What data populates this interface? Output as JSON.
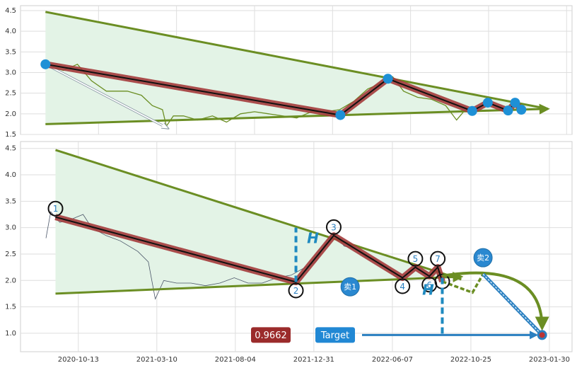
{
  "chart_data": [
    {
      "type": "line",
      "xlim": [
        0,
        7.07
      ],
      "xticks": [
        1,
        2,
        3,
        4,
        5,
        6,
        7
      ],
      "xtick_labels": false,
      "ylim": [
        1.5,
        4.62
      ],
      "yticks": [
        1.5,
        {
          "value": 2,
          "label": "2.0"
        },
        2.5,
        {
          "value": 3,
          "label": "3.0"
        },
        3.5,
        {
          "value": 4,
          "label": "4.0"
        },
        4.5
      ],
      "grid": true,
      "series": [
        {
          "color": "#6b8e23",
          "x": [
            0.32,
            0.37,
            0.55,
            0.73,
            0.91,
            1.1,
            1.37,
            1.55,
            1.69,
            1.82,
            1.87,
            1.96,
            2.09,
            2.27,
            2.46,
            2.64,
            2.82,
            3.0,
            3.18,
            3.36,
            3.54,
            3.73,
            3.91,
            4.09,
            4.27,
            4.45,
            4.63,
            4.77,
            4.91,
            5.09,
            5.27,
            5.45,
            5.59,
            5.68,
            5.77
          ],
          "values": [
            3.1,
            3.15,
            3.05,
            3.2,
            2.8,
            2.55,
            2.55,
            2.45,
            2.2,
            2.1,
            1.7,
            1.95,
            1.95,
            1.85,
            1.95,
            1.8,
            2.0,
            2.05,
            2.0,
            1.95,
            1.9,
            2.05,
            2.05,
            2.1,
            2.3,
            2.6,
            2.75,
            2.9,
            2.55,
            2.4,
            2.35,
            2.2,
            1.85,
            2.05,
            2.1
          ]
        }
      ],
      "triangle": {
        "color": "#6b8e23",
        "fill": "#e3f3e6",
        "upper": {
          "x": [
            0.32,
            6.76
          ],
          "values": [
            4.47,
            2.12
          ]
        },
        "lower": {
          "x": [
            0.32,
            6.76
          ],
          "values": [
            1.75,
            2.12
          ]
        }
      },
      "pattern": {
        "color": "#a33b3b",
        "point_color": "#1e90d6",
        "x": [
          0.32,
          4.1,
          4.71,
          5.79,
          5.99,
          6.25,
          6.34,
          6.42
        ],
        "values": [
          3.2,
          1.97,
          2.85,
          2.07,
          2.27,
          2.08,
          2.27,
          2.1
        ]
      },
      "arrow": {
        "x": [
          0.32,
          1.89
        ],
        "values": [
          3.2,
          1.65
        ]
      }
    },
    {
      "type": "line",
      "xlim": [
        "2020-06-26",
        "2023-02-27"
      ],
      "xticks": [
        "2020-10-13",
        "2021-03-10",
        "2021-08-04",
        "2021-12-31",
        "2022-06-07",
        "2022-10-25",
        "2023-01-30"
      ],
      "xtick_labels": true,
      "ylim": [
        0.65,
        4.63
      ],
      "yticks": [
        {
          "value": 1,
          "label": "1.0"
        },
        1.5,
        {
          "value": 2,
          "label": "2.0"
        },
        2.5,
        {
          "value": 3,
          "label": "3.0"
        },
        3.5,
        {
          "value": 4,
          "label": "4.0"
        },
        4.5
      ],
      "grid": true,
      "series": [
        {
          "color": "#4a5568",
          "x": [
            "2020-08-13",
            "2020-08-22",
            "2020-09-08",
            "2020-09-28",
            "2020-10-22",
            "2020-11-07",
            "2020-12-04",
            "2020-12-31",
            "2021-02-02",
            "2021-02-22",
            "2021-03-07",
            "2021-03-23",
            "2021-04-16",
            "2021-05-13",
            "2021-06-09",
            "2021-07-06",
            "2021-08-02",
            "2021-08-28",
            "2021-09-24",
            "2021-10-22",
            "2021-11-18",
            "2021-12-15",
            "2022-01-04",
            "2022-01-26",
            "2022-02-09",
            "2022-03-02",
            "2022-03-24",
            "2022-04-14",
            "2022-05-05",
            "2022-05-26",
            "2022-06-10",
            "2022-06-22"
          ],
          "values": [
            2.8,
            3.3,
            3.1,
            3.15,
            3.25,
            3.0,
            2.85,
            2.75,
            2.55,
            2.35,
            1.65,
            2.0,
            1.95,
            1.95,
            1.9,
            1.95,
            2.05,
            1.95,
            1.95,
            2.05,
            2.1,
            2.25,
            2.35,
            2.75,
            2.9,
            2.65,
            2.6,
            2.45,
            2.4,
            2.25,
            2.1,
            2.0
          ]
        }
      ],
      "triangle": {
        "color": "#6b8e23",
        "fill": "#e3f3e6",
        "upper": {
          "x": [
            "2020-08-31",
            "2022-10-08"
          ],
          "values": [
            4.47,
            2.02
          ]
        },
        "lower": {
          "x": [
            "2020-08-31",
            "2022-10-08"
          ],
          "values": [
            1.75,
            2.07
          ]
        }
      },
      "pattern": {
        "color": "#a33b3b",
        "label_color": "#2a7fc0",
        "x": [
          "2020-08-31",
          "2021-11-27",
          "2022-02-09",
          "2022-06-25",
          "2022-07-18",
          "2022-08-12",
          "2022-08-27",
          "2022-09-04"
        ],
        "values": [
          3.2,
          1.97,
          2.85,
          2.05,
          2.25,
          2.08,
          2.25,
          1.98
        ],
        "labels": [
          "1",
          "2",
          "3",
          "4",
          "5",
          "6",
          "7",
          null
        ]
      },
      "projection": {
        "color": "#6b8e23",
        "x": [
          "2022-09-04",
          "2022-10-27",
          "2022-11-09"
        ],
        "values": [
          1.98,
          1.77,
          2.12
        ]
      },
      "heights": [
        {
          "label": "H",
          "x": "2021-11-27",
          "from": 1.97,
          "to": 3.0
        },
        {
          "label": "H",
          "x": "2022-09-04",
          "from": 2.05,
          "to": 0.9662
        }
      ],
      "signals": [
        {
          "label": "卖1",
          "x": "2022-03-14",
          "value": 1.88
        },
        {
          "label": "卖2",
          "x": "2022-11-09",
          "value": 2.43
        }
      ],
      "target": {
        "label": "Target",
        "value": 0.9662,
        "x": "2023-01-21"
      }
    }
  ]
}
